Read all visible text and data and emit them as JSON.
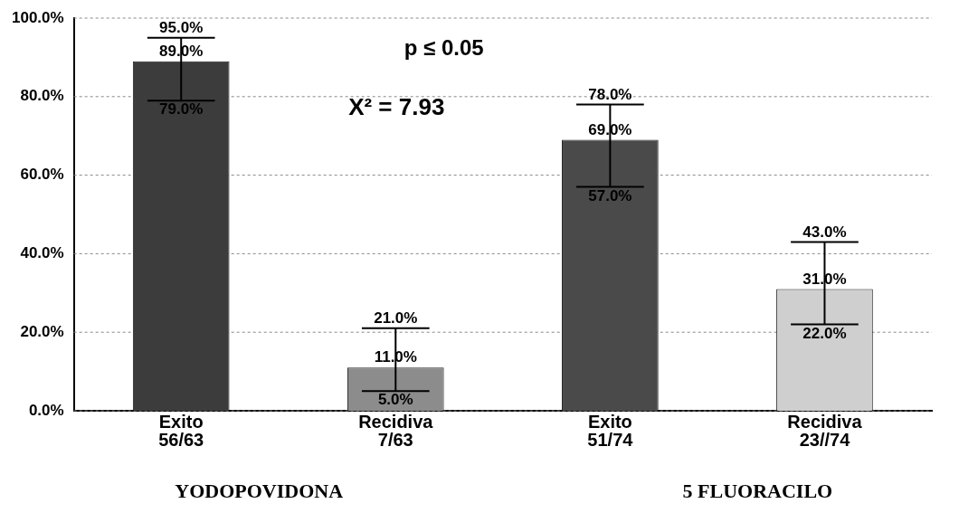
{
  "chart_data": {
    "type": "bar",
    "categories": [
      "Exito\n56/63",
      "Recidiva\n7/63",
      "Exito\n51/74",
      "Recidiva\n23//74"
    ],
    "values": [
      89,
      11,
      69,
      31
    ],
    "colors": [
      "#3c3c3c",
      "#8c8c8c",
      "#4a4a4a",
      "#cfcfcf"
    ],
    "errors": [
      [
        79,
        95
      ],
      [
        5,
        21
      ],
      [
        57,
        78
      ],
      [
        22,
        43
      ]
    ],
    "value_labels": [
      "89.0%",
      "11.0%",
      "69.0%",
      "31.0%"
    ],
    "ylim": [
      0,
      100
    ],
    "yticks": [
      {
        "value": 0,
        "label": "0.0%"
      },
      {
        "value": 20,
        "label": "20.0%"
      },
      {
        "value": 40,
        "label": "40.0%"
      },
      {
        "value": 60,
        "label": "60.0%"
      },
      {
        "value": 80,
        "label": "80.0%"
      },
      {
        "value": 100,
        "label": "100.0%"
      }
    ],
    "grid": "y",
    "annotations": [
      "p ≤ 0.05",
      "X² = 7.93",
      "YODOPOVIDONA",
      "5 FLUORACILO",
      "95.0%",
      "79.0%",
      "21.0%",
      "5.0%",
      "78.0%",
      "57.0%",
      "43.0%",
      "22.0%"
    ]
  }
}
